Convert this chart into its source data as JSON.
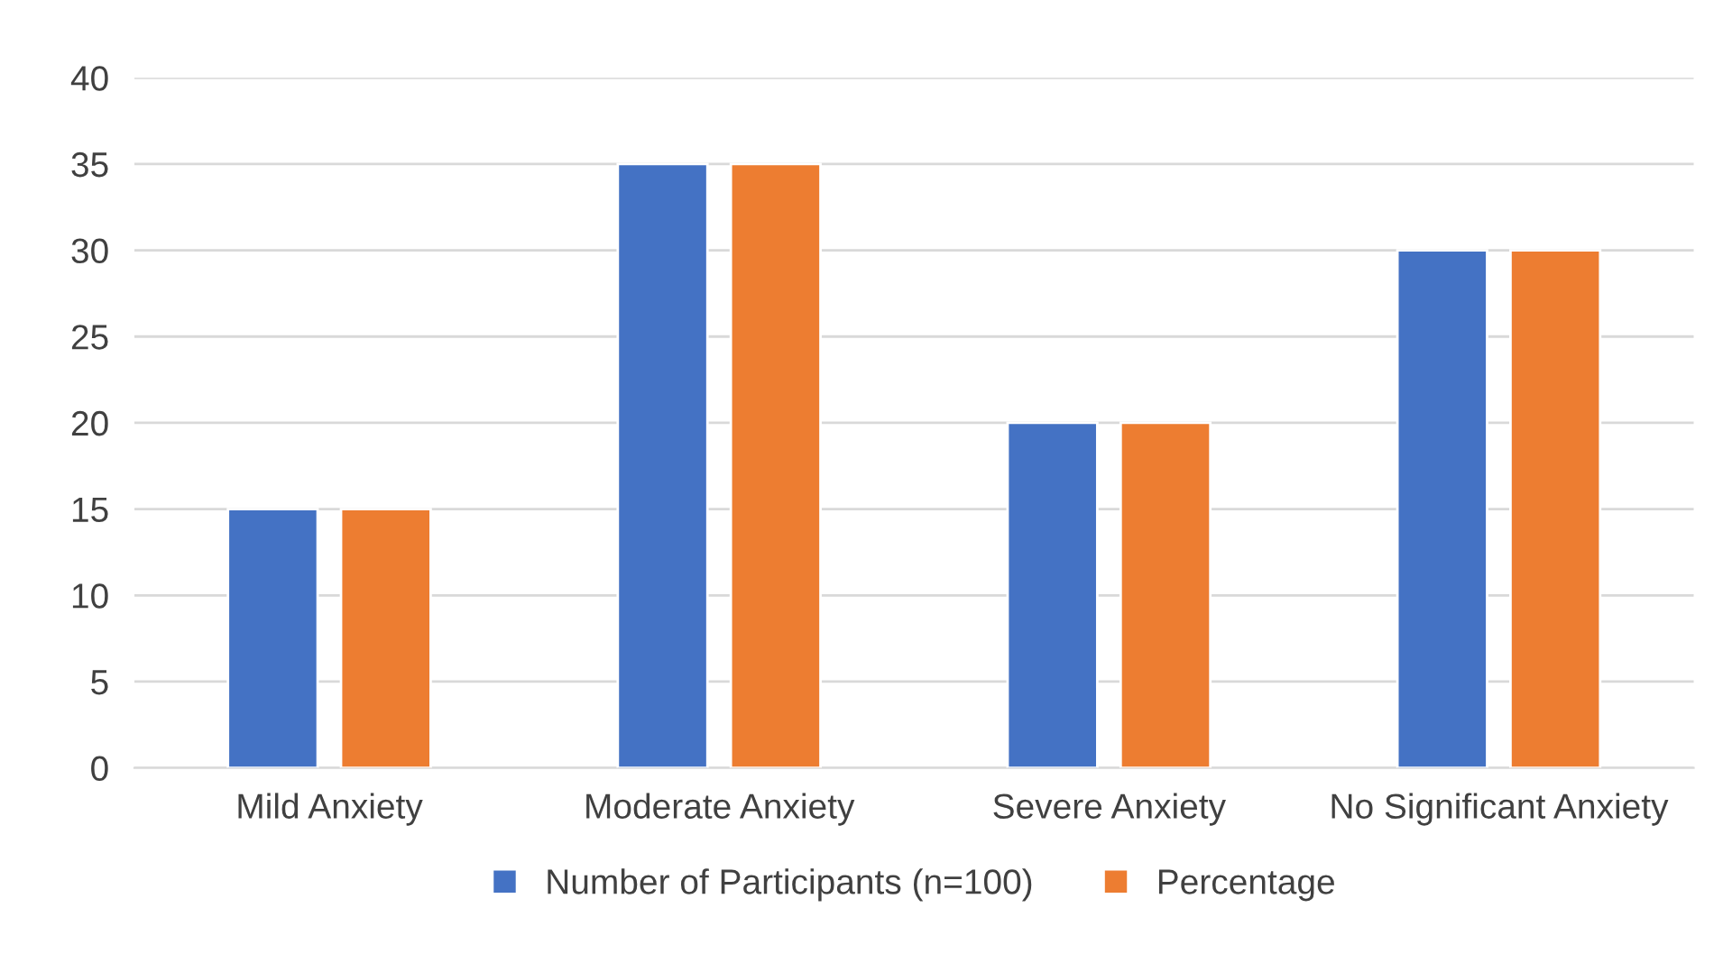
{
  "chart_data": {
    "type": "bar",
    "categories": [
      "Mild Anxiety",
      "Moderate Anxiety",
      "Severe Anxiety",
      "No Significant Anxiety"
    ],
    "series": [
      {
        "name": "Number of Participants (n=100)",
        "color": "#4472c4",
        "values": [
          15,
          35,
          20,
          30
        ]
      },
      {
        "name": "Percentage",
        "color": "#ed7d31",
        "values": [
          15,
          35,
          20,
          30
        ]
      }
    ],
    "ylim": [
      0,
      40
    ],
    "yticks": [
      0,
      5,
      10,
      15,
      20,
      25,
      30,
      35,
      40
    ],
    "grid": "y",
    "legend": "bottom"
  }
}
